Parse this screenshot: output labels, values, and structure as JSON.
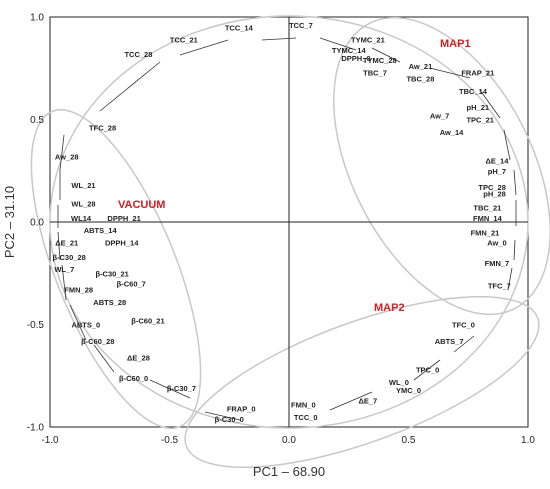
{
  "chart_data": {
    "type": "scatter",
    "xlabel": "PC1 – 68.90",
    "ylabel": "PC2 – 31.10",
    "xlim": [
      -1.0,
      1.0
    ],
    "ylim": [
      -1.0,
      1.0
    ],
    "x_ticks": [
      "-1.0",
      "-0.5",
      "0.0",
      "0.5",
      "1.0"
    ],
    "y_ticks": [
      "-1.0",
      "-0.5",
      "0.0",
      "0.5",
      "1.0"
    ],
    "group_color": "#cc2222",
    "ellipse_color": "#c8c8c8",
    "groups": [
      {
        "label": "MAP1"
      },
      {
        "label": "VACUUM"
      },
      {
        "label": "MAP2"
      }
    ],
    "points": [
      {
        "label": "TCC_14",
        "x": -0.21,
        "y": 0.95
      },
      {
        "label": "TCC_7",
        "x": 0.05,
        "y": 0.96
      },
      {
        "label": "TCC_21",
        "x": -0.44,
        "y": 0.89
      },
      {
        "label": "TCC_28",
        "x": -0.63,
        "y": 0.82
      },
      {
        "label": "TYMC_21",
        "x": 0.33,
        "y": 0.89
      },
      {
        "label": "TYMC_14",
        "x": 0.25,
        "y": 0.84
      },
      {
        "label": "DPPH_0",
        "x": 0.28,
        "y": 0.8
      },
      {
        "label": "TYMC_28",
        "x": 0.38,
        "y": 0.79
      },
      {
        "label": "Aw_21",
        "x": 0.55,
        "y": 0.76
      },
      {
        "label": "TBC_7",
        "x": 0.36,
        "y": 0.73
      },
      {
        "label": "TBC_28",
        "x": 0.55,
        "y": 0.7
      },
      {
        "label": "FRAP_21",
        "x": 0.79,
        "y": 0.73
      },
      {
        "label": "TBC_14",
        "x": 0.77,
        "y": 0.64
      },
      {
        "label": "pH_21",
        "x": 0.79,
        "y": 0.56
      },
      {
        "label": "Aw_7",
        "x": 0.63,
        "y": 0.52
      },
      {
        "label": "TPC_21",
        "x": 0.8,
        "y": 0.5
      },
      {
        "label": "Aw_14",
        "x": 0.68,
        "y": 0.44
      },
      {
        "label": "ΔE_14",
        "x": 0.87,
        "y": 0.3
      },
      {
        "label": "pH_7",
        "x": 0.87,
        "y": 0.25
      },
      {
        "label": "TPC_28",
        "x": 0.85,
        "y": 0.17
      },
      {
        "label": "pH_28",
        "x": 0.86,
        "y": 0.14
      },
      {
        "label": "TBC_21",
        "x": 0.83,
        "y": 0.07
      },
      {
        "label": "FMN_14",
        "x": 0.83,
        "y": 0.02
      },
      {
        "label": "FMN_21",
        "x": 0.82,
        "y": -0.05
      },
      {
        "label": "Aw_0",
        "x": 0.87,
        "y": -0.1
      },
      {
        "label": "FMN_7",
        "x": 0.87,
        "y": -0.2
      },
      {
        "label": "TFC_7",
        "x": 0.88,
        "y": -0.31
      },
      {
        "label": "TFC_28",
        "x": -0.78,
        "y": 0.46
      },
      {
        "label": "Aw_28",
        "x": -0.93,
        "y": 0.32
      },
      {
        "label": "WL_21",
        "x": -0.86,
        "y": 0.18
      },
      {
        "label": "WL_28",
        "x": -0.86,
        "y": 0.09
      },
      {
        "label": "WL14",
        "x": -0.87,
        "y": 0.02
      },
      {
        "label": "DPPH_21",
        "x": -0.69,
        "y": 0.02
      },
      {
        "label": "ABTS_14",
        "x": -0.79,
        "y": -0.04
      },
      {
        "label": "ΔE_21",
        "x": -0.93,
        "y": -0.1
      },
      {
        "label": "DPPH_14",
        "x": -0.7,
        "y": -0.1
      },
      {
        "label": "β-C30_28",
        "x": -0.92,
        "y": -0.17
      },
      {
        "label": "WL_7",
        "x": -0.94,
        "y": -0.23
      },
      {
        "label": "β-C30_21",
        "x": -0.74,
        "y": -0.25
      },
      {
        "label": "β-C60_7",
        "x": -0.66,
        "y": -0.3
      },
      {
        "label": "FMN_28",
        "x": -0.88,
        "y": -0.33
      },
      {
        "label": "ABTS_28",
        "x": -0.75,
        "y": -0.39
      },
      {
        "label": "β-C60_21",
        "x": -0.59,
        "y": -0.48
      },
      {
        "label": "ABTS_0",
        "x": -0.85,
        "y": -0.5
      },
      {
        "label": "β-C60_28",
        "x": -0.8,
        "y": -0.58
      },
      {
        "label": "ΔE_28",
        "x": -0.63,
        "y": -0.66
      },
      {
        "label": "β-C60_0",
        "x": -0.65,
        "y": -0.76
      },
      {
        "label": "β-C30_7",
        "x": -0.45,
        "y": -0.81
      },
      {
        "label": "FRAP_0",
        "x": -0.2,
        "y": -0.91
      },
      {
        "label": "FMN_0",
        "x": 0.06,
        "y": -0.89
      },
      {
        "label": "TCC_0",
        "x": 0.07,
        "y": -0.95
      },
      {
        "label": "β-C30_0",
        "x": -0.25,
        "y": -0.96
      },
      {
        "label": "ΔE_7",
        "x": 0.33,
        "y": -0.87
      },
      {
        "label": "WL_0",
        "x": 0.46,
        "y": -0.78
      },
      {
        "label": "YMC_0",
        "x": 0.5,
        "y": -0.82
      },
      {
        "label": "TPC_0",
        "x": 0.58,
        "y": -0.72
      },
      {
        "label": "ABTS_7",
        "x": 0.67,
        "y": -0.58
      },
      {
        "label": "TFC_0",
        "x": 0.73,
        "y": -0.5
      }
    ]
  }
}
